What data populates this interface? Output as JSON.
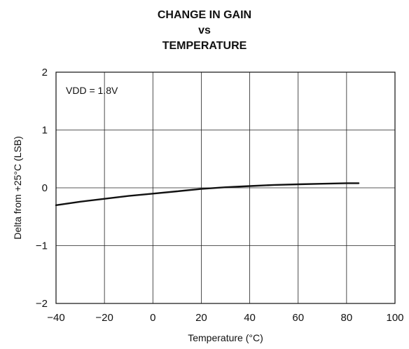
{
  "chart_data": {
    "type": "line",
    "title_lines": [
      "CHANGE IN GAIN",
      "vs",
      "TEMPERATURE"
    ],
    "xlabel": "Temperature (°C)",
    "ylabel": "Delta from +25°C (LSB)",
    "xlim": [
      -40,
      100
    ],
    "ylim": [
      -2,
      2
    ],
    "x_ticks": [
      -40,
      -20,
      0,
      20,
      40,
      60,
      80,
      100
    ],
    "y_ticks": [
      2,
      1,
      0,
      -1,
      -2
    ],
    "x_tick_labels": [
      "−40",
      "−20",
      "0",
      "20",
      "40",
      "60",
      "80",
      "100"
    ],
    "y_tick_labels": [
      "2",
      "1",
      "0",
      "−1",
      "−2"
    ],
    "grid": true,
    "annotation": "VDD = 1.8V",
    "series": [
      {
        "x": [
          -40,
          -30,
          -20,
          -10,
          0,
          10,
          20,
          30,
          40,
          50,
          60,
          70,
          80,
          85
        ],
        "values": [
          -0.3,
          -0.24,
          -0.19,
          -0.14,
          -0.1,
          -0.06,
          -0.02,
          0.01,
          0.03,
          0.05,
          0.06,
          0.07,
          0.08,
          0.08
        ]
      }
    ]
  }
}
